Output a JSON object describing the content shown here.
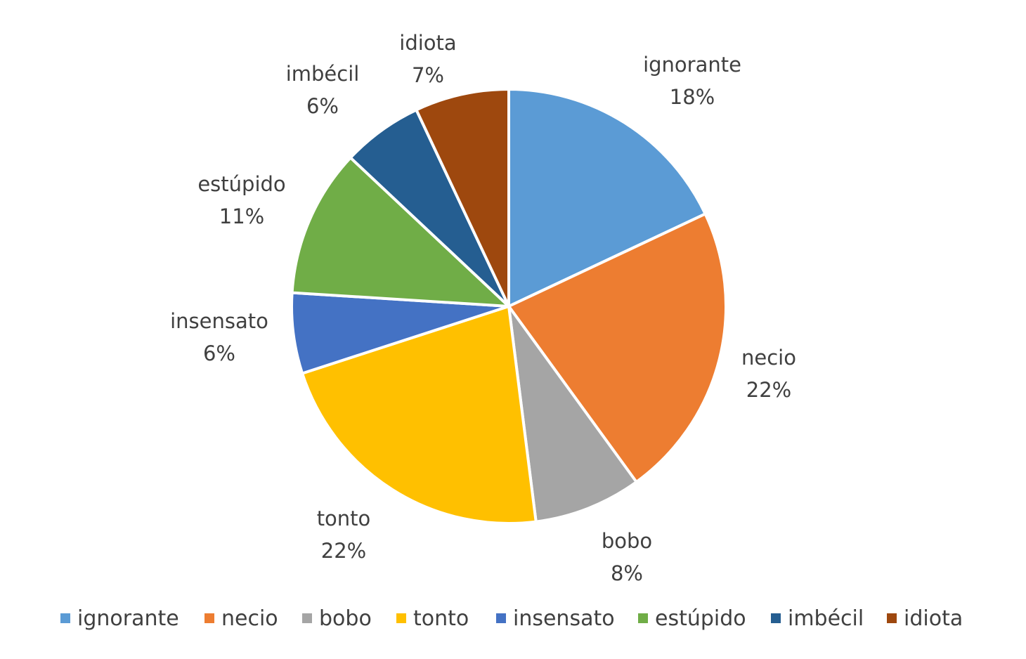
{
  "chart_data": {
    "type": "pie",
    "title": "",
    "legend_position": "bottom",
    "label_format": "category-and-percent",
    "start_angle_deg": 0,
    "direction": "clockwise",
    "slices": [
      {
        "label": "ignorante",
        "value": 18,
        "percent_label": "18%",
        "color": "#5B9BD5"
      },
      {
        "label": "necio",
        "value": 22,
        "percent_label": "22%",
        "color": "#ED7D31"
      },
      {
        "label": "bobo",
        "value": 8,
        "percent_label": "8%",
        "color": "#A5A5A5"
      },
      {
        "label": "tonto",
        "value": 22,
        "percent_label": "22%",
        "color": "#FFC000"
      },
      {
        "label": "insensato",
        "value": 6,
        "percent_label": "6%",
        "color": "#4472C4"
      },
      {
        "label": "estúpido",
        "value": 11,
        "percent_label": "11%",
        "color": "#70AD47"
      },
      {
        "label": "imbécil",
        "value": 6,
        "percent_label": "6%",
        "color": "#255E91"
      },
      {
        "label": "idiota",
        "value": 7,
        "percent_label": "7%",
        "color": "#9E480E"
      }
    ]
  }
}
